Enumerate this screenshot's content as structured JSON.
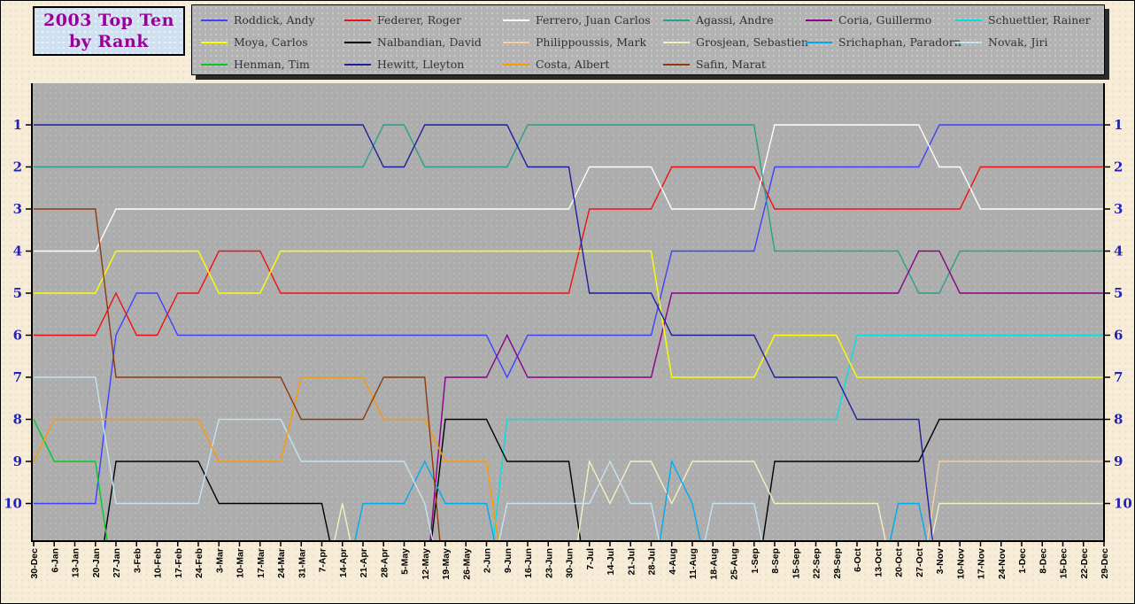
{
  "title": {
    "line1": "2003 Top Ten",
    "line2": "by Rank"
  },
  "colors": {
    "page_bg": "#f6ecd7",
    "plot_bg": "#adadad",
    "legend_bg": "#b3b3b3",
    "title_bg": "#cfe0f0",
    "title_text": "#990099",
    "y_axis_label": "#2222bb",
    "x_axis_label": "#000000",
    "axis_line": "#000000"
  },
  "chart_data": {
    "type": "line",
    "title": "2003 Top Ten by Rank",
    "xlabel": "",
    "ylabel": "",
    "y_ticks": [
      1,
      2,
      3,
      4,
      5,
      6,
      7,
      8,
      9,
      10
    ],
    "y_axis_inverted": true,
    "y_axis_labels_both_sides": true,
    "grid": false,
    "legend_position": "top",
    "x_tick_labels": [
      "30-Dec",
      "6-Jan",
      "13-Jan",
      "20-Jan",
      "27-Jan",
      "3-Feb",
      "10-Feb",
      "17-Feb",
      "24-Feb",
      "3-Mar",
      "10-Mar",
      "17-Mar",
      "24-Mar",
      "31-Mar",
      "7-Apr",
      "14-Apr",
      "21-Apr",
      "28-Apr",
      "5-May",
      "12-May",
      "19-May",
      "26-May",
      "2-Jun",
      "9-Jun",
      "16-Jun",
      "23-Jun",
      "30-Jun",
      "7-Jul",
      "14-Jul",
      "21-Jul",
      "28-Jul",
      "4-Aug",
      "11-Aug",
      "18-Aug",
      "25-Aug",
      "1-Sep",
      "8-Sep",
      "15-Sep",
      "22-Sep",
      "29-Sep",
      "6-Oct",
      "13-Oct",
      "20-Oct",
      "27-Oct",
      "3-Nov",
      "10-Nov",
      "17-Nov",
      "24-Nov",
      "1-Dec",
      "8-Dec",
      "15-Dec",
      "22-Dec",
      "29-Dec"
    ],
    "series": [
      {
        "name": "Roddick, Andy",
        "color": "#4040ff",
        "ranks": [
          10,
          10,
          10,
          10,
          6,
          5,
          5,
          6,
          6,
          6,
          6,
          6,
          6,
          6,
          6,
          6,
          6,
          6,
          6,
          6,
          6,
          6,
          6,
          7,
          6,
          6,
          6,
          6,
          6,
          6,
          6,
          4,
          4,
          4,
          4,
          4,
          2,
          2,
          2,
          2,
          2,
          2,
          2,
          2,
          1,
          1,
          1,
          1,
          1,
          1,
          1,
          1,
          1
        ]
      },
      {
        "name": "Federer, Roger",
        "color": "#ee1111",
        "ranks": [
          6,
          6,
          6,
          6,
          5,
          6,
          6,
          5,
          5,
          4,
          4,
          4,
          5,
          5,
          5,
          5,
          5,
          5,
          5,
          5,
          5,
          5,
          5,
          5,
          5,
          5,
          5,
          3,
          3,
          3,
          3,
          2,
          2,
          2,
          2,
          2,
          3,
          3,
          3,
          3,
          3,
          3,
          3,
          3,
          3,
          3,
          2,
          2,
          2,
          2,
          2,
          2,
          2
        ]
      },
      {
        "name": "Ferrero, Juan Carlos",
        "color": "#ffffff",
        "ranks": [
          4,
          4,
          4,
          4,
          3,
          3,
          3,
          3,
          3,
          3,
          3,
          3,
          3,
          3,
          3,
          3,
          3,
          3,
          3,
          3,
          3,
          3,
          3,
          3,
          3,
          3,
          3,
          2,
          2,
          2,
          2,
          3,
          3,
          3,
          3,
          3,
          1,
          1,
          1,
          1,
          1,
          1,
          1,
          1,
          2,
          2,
          3,
          3,
          3,
          3,
          3,
          3,
          3
        ]
      },
      {
        "name": "Agassi, Andre",
        "color": "#2aa08a",
        "ranks": [
          2,
          2,
          2,
          2,
          2,
          2,
          2,
          2,
          2,
          2,
          2,
          2,
          2,
          2,
          2,
          2,
          2,
          1,
          1,
          2,
          2,
          2,
          2,
          2,
          1,
          1,
          1,
          1,
          1,
          1,
          1,
          1,
          1,
          1,
          1,
          1,
          4,
          4,
          4,
          4,
          4,
          4,
          4,
          5,
          5,
          4,
          4,
          4,
          4,
          4,
          4,
          4,
          4
        ]
      },
      {
        "name": "Coria, Guillermo",
        "color": "#8b008b",
        "ranks": [
          null,
          null,
          null,
          null,
          null,
          null,
          null,
          null,
          null,
          null,
          null,
          null,
          null,
          null,
          null,
          null,
          null,
          null,
          null,
          null,
          7,
          7,
          7,
          6,
          7,
          7,
          7,
          7,
          7,
          7,
          7,
          5,
          5,
          5,
          5,
          5,
          5,
          5,
          5,
          5,
          5,
          5,
          5,
          4,
          4,
          5,
          5,
          5,
          5,
          5,
          5,
          5,
          5
        ]
      },
      {
        "name": "Schuettler, Rainer",
        "color": "#00e0e0",
        "ranks": [
          null,
          null,
          null,
          null,
          null,
          null,
          null,
          null,
          null,
          null,
          null,
          null,
          null,
          null,
          null,
          null,
          null,
          null,
          null,
          null,
          null,
          null,
          null,
          8,
          8,
          8,
          8,
          8,
          8,
          8,
          8,
          8,
          8,
          8,
          8,
          8,
          8,
          8,
          8,
          8,
          6,
          6,
          6,
          6,
          6,
          6,
          6,
          6,
          6,
          6,
          6,
          6,
          6
        ]
      },
      {
        "name": "Moya, Carlos",
        "color": "#ffff00",
        "ranks": [
          5,
          5,
          5,
          5,
          4,
          4,
          4,
          4,
          4,
          5,
          5,
          5,
          4,
          4,
          4,
          4,
          4,
          4,
          4,
          4,
          4,
          4,
          4,
          4,
          4,
          4,
          4,
          4,
          4,
          4,
          4,
          7,
          7,
          7,
          7,
          7,
          6,
          6,
          6,
          6,
          7,
          7,
          7,
          7,
          7,
          7,
          7,
          7,
          7,
          7,
          7,
          7,
          7
        ]
      },
      {
        "name": "Nalbandian, David",
        "color": "#000000",
        "ranks": [
          null,
          null,
          null,
          null,
          9,
          9,
          9,
          9,
          9,
          10,
          10,
          10,
          10,
          10,
          10,
          null,
          null,
          null,
          null,
          null,
          8,
          8,
          8,
          9,
          9,
          9,
          9,
          null,
          null,
          null,
          null,
          null,
          null,
          null,
          null,
          null,
          9,
          9,
          9,
          9,
          9,
          9,
          9,
          9,
          8,
          8,
          8,
          8,
          8,
          8,
          8,
          8,
          8
        ]
      },
      {
        "name": "Philippoussis, Mark",
        "color": "#f7cf9e",
        "ranks": [
          null,
          null,
          null,
          null,
          null,
          null,
          null,
          null,
          null,
          null,
          null,
          null,
          null,
          null,
          null,
          null,
          null,
          null,
          null,
          null,
          null,
          null,
          null,
          null,
          null,
          null,
          null,
          null,
          null,
          null,
          null,
          null,
          null,
          null,
          null,
          null,
          null,
          null,
          null,
          null,
          null,
          null,
          null,
          null,
          9,
          9,
          9,
          9,
          9,
          9,
          9,
          9,
          9
        ]
      },
      {
        "name": "Grosjean, Sebastien",
        "color": "#f5f0c0",
        "ranks": [
          null,
          null,
          null,
          null,
          null,
          null,
          null,
          null,
          null,
          null,
          null,
          null,
          null,
          null,
          null,
          10,
          null,
          null,
          null,
          null,
          null,
          null,
          null,
          null,
          null,
          null,
          null,
          9,
          10,
          9,
          9,
          10,
          9,
          9,
          9,
          9,
          10,
          10,
          10,
          10,
          10,
          10,
          null,
          null,
          10,
          10,
          10,
          10,
          10,
          10,
          10,
          10,
          10
        ]
      },
      {
        "name": "Srichaphan, Paradorn",
        "color": "#00aaee",
        "ranks": [
          null,
          null,
          null,
          null,
          null,
          null,
          null,
          null,
          null,
          null,
          null,
          null,
          null,
          null,
          null,
          null,
          10,
          10,
          10,
          9,
          10,
          10,
          10,
          null,
          null,
          null,
          null,
          null,
          null,
          null,
          null,
          9,
          10,
          null,
          null,
          null,
          null,
          null,
          null,
          null,
          null,
          null,
          10,
          10,
          null,
          null,
          null,
          null,
          null,
          null,
          null,
          null,
          null
        ]
      },
      {
        "name": "Novak, Jiri",
        "color": "#c4e4f2",
        "ranks": [
          7,
          7,
          7,
          7,
          10,
          10,
          10,
          10,
          10,
          8,
          8,
          8,
          8,
          9,
          9,
          9,
          9,
          9,
          9,
          10,
          null,
          null,
          null,
          10,
          10,
          10,
          10,
          10,
          9,
          10,
          10,
          null,
          null,
          10,
          10,
          10,
          null,
          null,
          null,
          null,
          null,
          null,
          null,
          null,
          null,
          null,
          null,
          null,
          null,
          null,
          null,
          null,
          null
        ]
      },
      {
        "name": "Henman, Tim",
        "color": "#00cc22",
        "ranks": [
          8,
          9,
          9,
          9,
          null,
          null,
          null,
          null,
          null,
          null,
          null,
          null,
          null,
          null,
          null,
          null,
          null,
          null,
          null,
          null,
          null,
          null,
          null,
          null,
          null,
          null,
          null,
          null,
          null,
          null,
          null,
          null,
          null,
          null,
          null,
          null,
          null,
          null,
          null,
          null,
          null,
          null,
          null,
          null,
          null,
          null,
          null,
          null,
          null,
          null,
          null,
          null,
          null
        ]
      },
      {
        "name": "Hewitt, Lleyton",
        "color": "#1f1f9e",
        "ranks": [
          1,
          1,
          1,
          1,
          1,
          1,
          1,
          1,
          1,
          1,
          1,
          1,
          1,
          1,
          1,
          1,
          1,
          2,
          2,
          1,
          1,
          1,
          1,
          1,
          2,
          2,
          2,
          5,
          5,
          5,
          5,
          6,
          6,
          6,
          6,
          6,
          7,
          7,
          7,
          7,
          8,
          8,
          8,
          8,
          null,
          null,
          null,
          null,
          null,
          null,
          null,
          null,
          null
        ]
      },
      {
        "name": "Costa, Albert",
        "color": "#ff9900",
        "ranks": [
          9,
          8,
          8,
          8,
          8,
          8,
          8,
          8,
          8,
          9,
          9,
          9,
          9,
          7,
          7,
          7,
          7,
          8,
          8,
          8,
          9,
          9,
          9,
          null,
          null,
          null,
          null,
          null,
          null,
          null,
          null,
          null,
          null,
          null,
          null,
          null,
          null,
          null,
          null,
          null,
          null,
          null,
          null,
          null,
          null,
          null,
          null,
          null,
          null,
          null,
          null,
          null,
          null
        ]
      },
      {
        "name": "Safin, Marat",
        "color": "#8e3a0e",
        "ranks": [
          3,
          3,
          3,
          3,
          7,
          7,
          7,
          7,
          7,
          7,
          7,
          7,
          7,
          8,
          8,
          8,
          8,
          7,
          7,
          7,
          null,
          null,
          null,
          null,
          null,
          null,
          null,
          null,
          null,
          null,
          null,
          null,
          null,
          null,
          null,
          null,
          null,
          null,
          null,
          null,
          null,
          null,
          null,
          null,
          null,
          null,
          null,
          null,
          null,
          null,
          null,
          null,
          null
        ]
      }
    ]
  }
}
